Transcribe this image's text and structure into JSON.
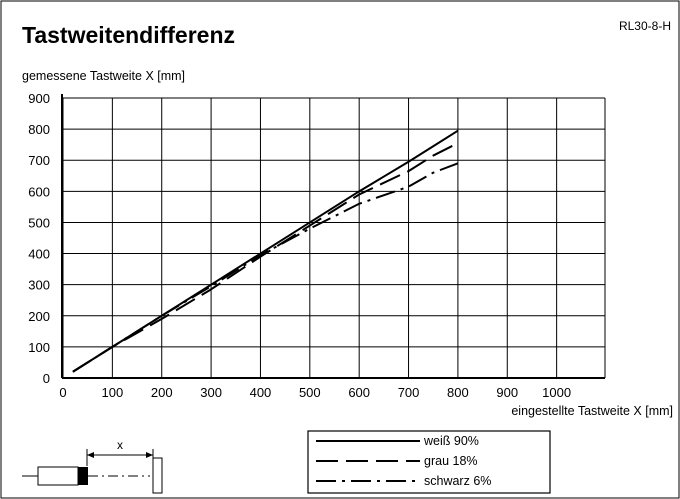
{
  "header": {
    "title": "Tastweitendifferenz",
    "code": "RL30-8-H"
  },
  "chart_data": {
    "type": "line",
    "ylabel": "gemessene Tastweite X [mm]",
    "xlabel": "eingestellte Tastweite X [mm]",
    "xlim": [
      0,
      1100
    ],
    "ylim": [
      0,
      900
    ],
    "x_ticks": [
      0,
      100,
      200,
      300,
      400,
      500,
      600,
      700,
      800,
      900,
      1000
    ],
    "y_ticks": [
      0,
      100,
      200,
      300,
      400,
      500,
      600,
      700,
      800,
      900
    ],
    "grid": true,
    "legend_position": "bottom-center",
    "series": [
      {
        "name": "weiß 90%",
        "style": "solid",
        "x": [
          20,
          100,
          200,
          300,
          400,
          500,
          600,
          700,
          750,
          800
        ],
        "y": [
          20,
          100,
          200,
          300,
          400,
          500,
          600,
          695,
          745,
          795
        ]
      },
      {
        "name": "grau 18%",
        "style": "dashed",
        "x": [
          20,
          100,
          200,
          300,
          400,
          500,
          600,
          700,
          750,
          800
        ],
        "y": [
          20,
          100,
          190,
          285,
          390,
          490,
          590,
          665,
          715,
          755
        ]
      },
      {
        "name": "schwarz 6%",
        "style": "dashdot",
        "x": [
          20,
          100,
          200,
          300,
          400,
          500,
          600,
          700,
          750,
          800
        ],
        "y": [
          20,
          100,
          200,
          295,
          395,
          480,
          560,
          615,
          660,
          690
        ]
      }
    ]
  },
  "diagram": {
    "distance_label": "x"
  }
}
